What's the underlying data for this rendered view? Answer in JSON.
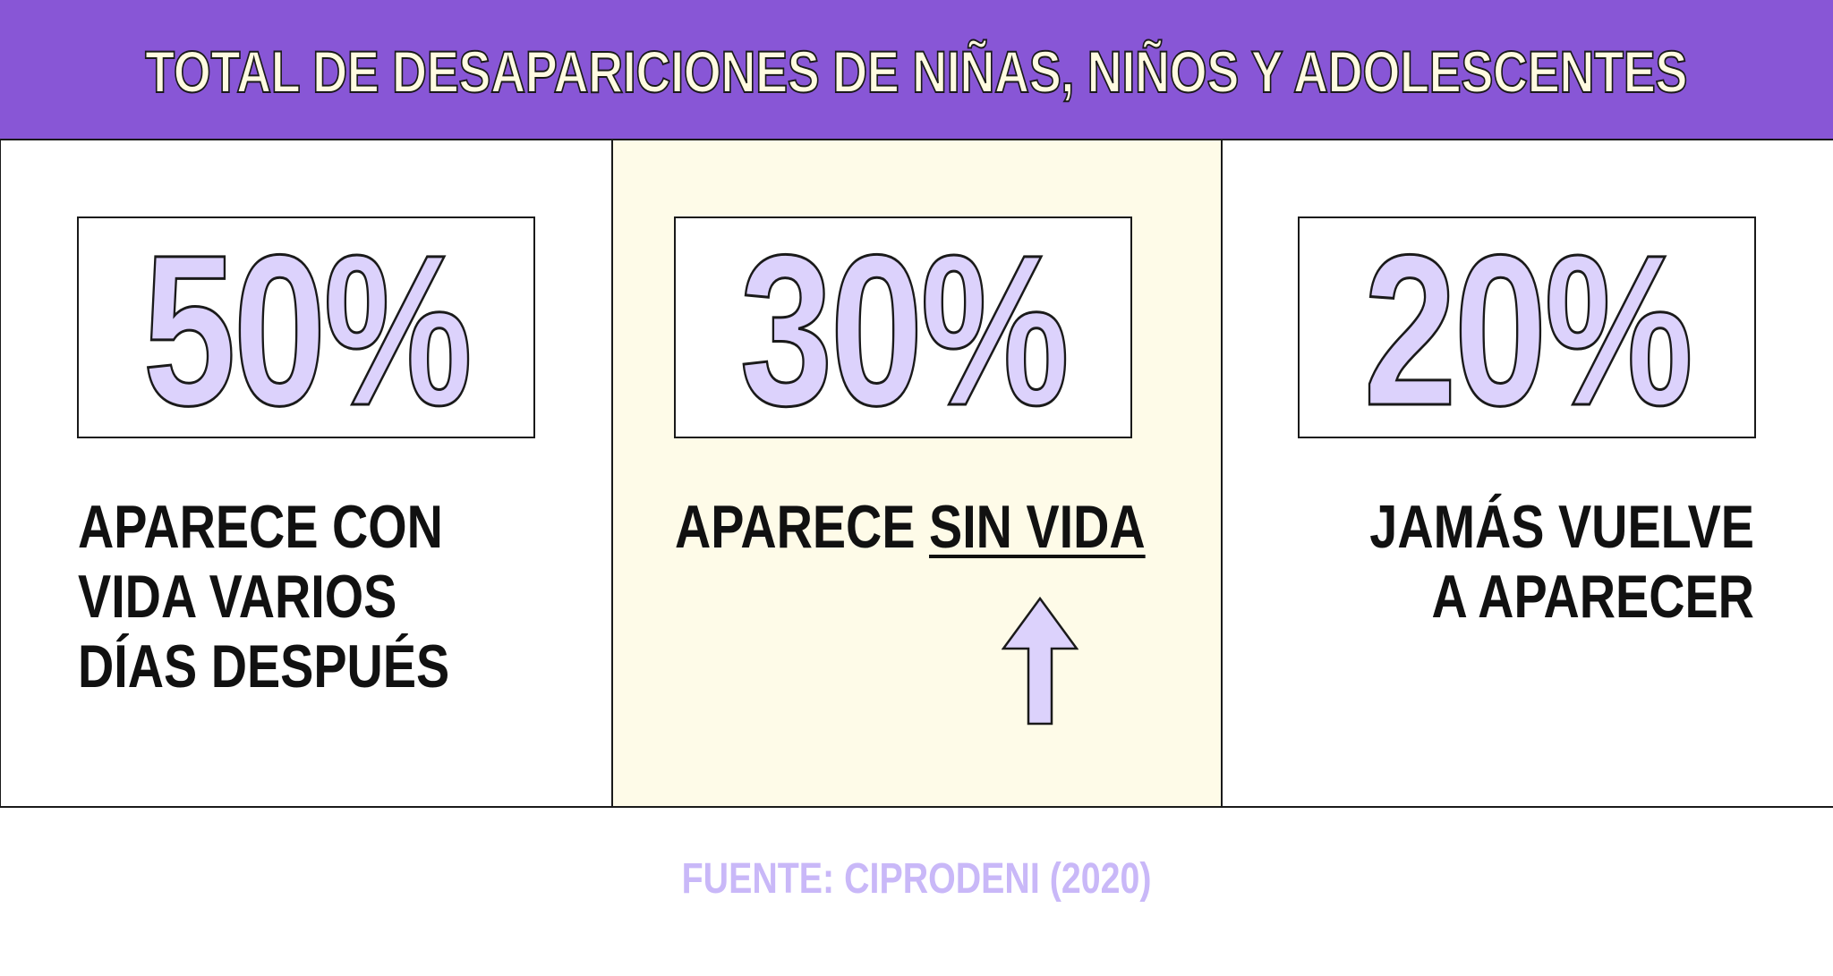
{
  "header": {
    "title": "TOTAL DE DESAPARICIONES DE NIÑAS, NIÑOS Y ADOLESCENTES"
  },
  "colors": {
    "header_bg": "#8856d6",
    "header_text": "#fffbe0",
    "percent_fill": "#dcd2fc",
    "highlight_panel_bg": "#fefbe8",
    "source_text": "#c9b8f8"
  },
  "panels": [
    {
      "percent": "50%",
      "lines": [
        "APARECE CON",
        "VIDA VARIOS",
        "DÍAS DESPUÉS"
      ]
    },
    {
      "percent": "30%",
      "prefix": "APARECE ",
      "emphasis": "SIN VIDA",
      "arrow_icon": "arrow-up-icon"
    },
    {
      "percent": "20%",
      "lines": [
        "JAMÁS VUELVE",
        "A APARECER"
      ]
    }
  ],
  "chart_data": {
    "type": "table",
    "title": "TOTAL DE DESAPARICIONES DE NIÑAS, NIÑOS Y ADOLESCENTES",
    "categories": [
      "APARECE CON VIDA VARIOS DÍAS DESPUÉS",
      "APARECE SIN VIDA",
      "JAMÁS VUELVE A APARECER"
    ],
    "values": [
      50,
      30,
      20
    ],
    "unit": "%"
  },
  "footer": {
    "source": "FUENTE: CIPRODENI (2020)"
  }
}
